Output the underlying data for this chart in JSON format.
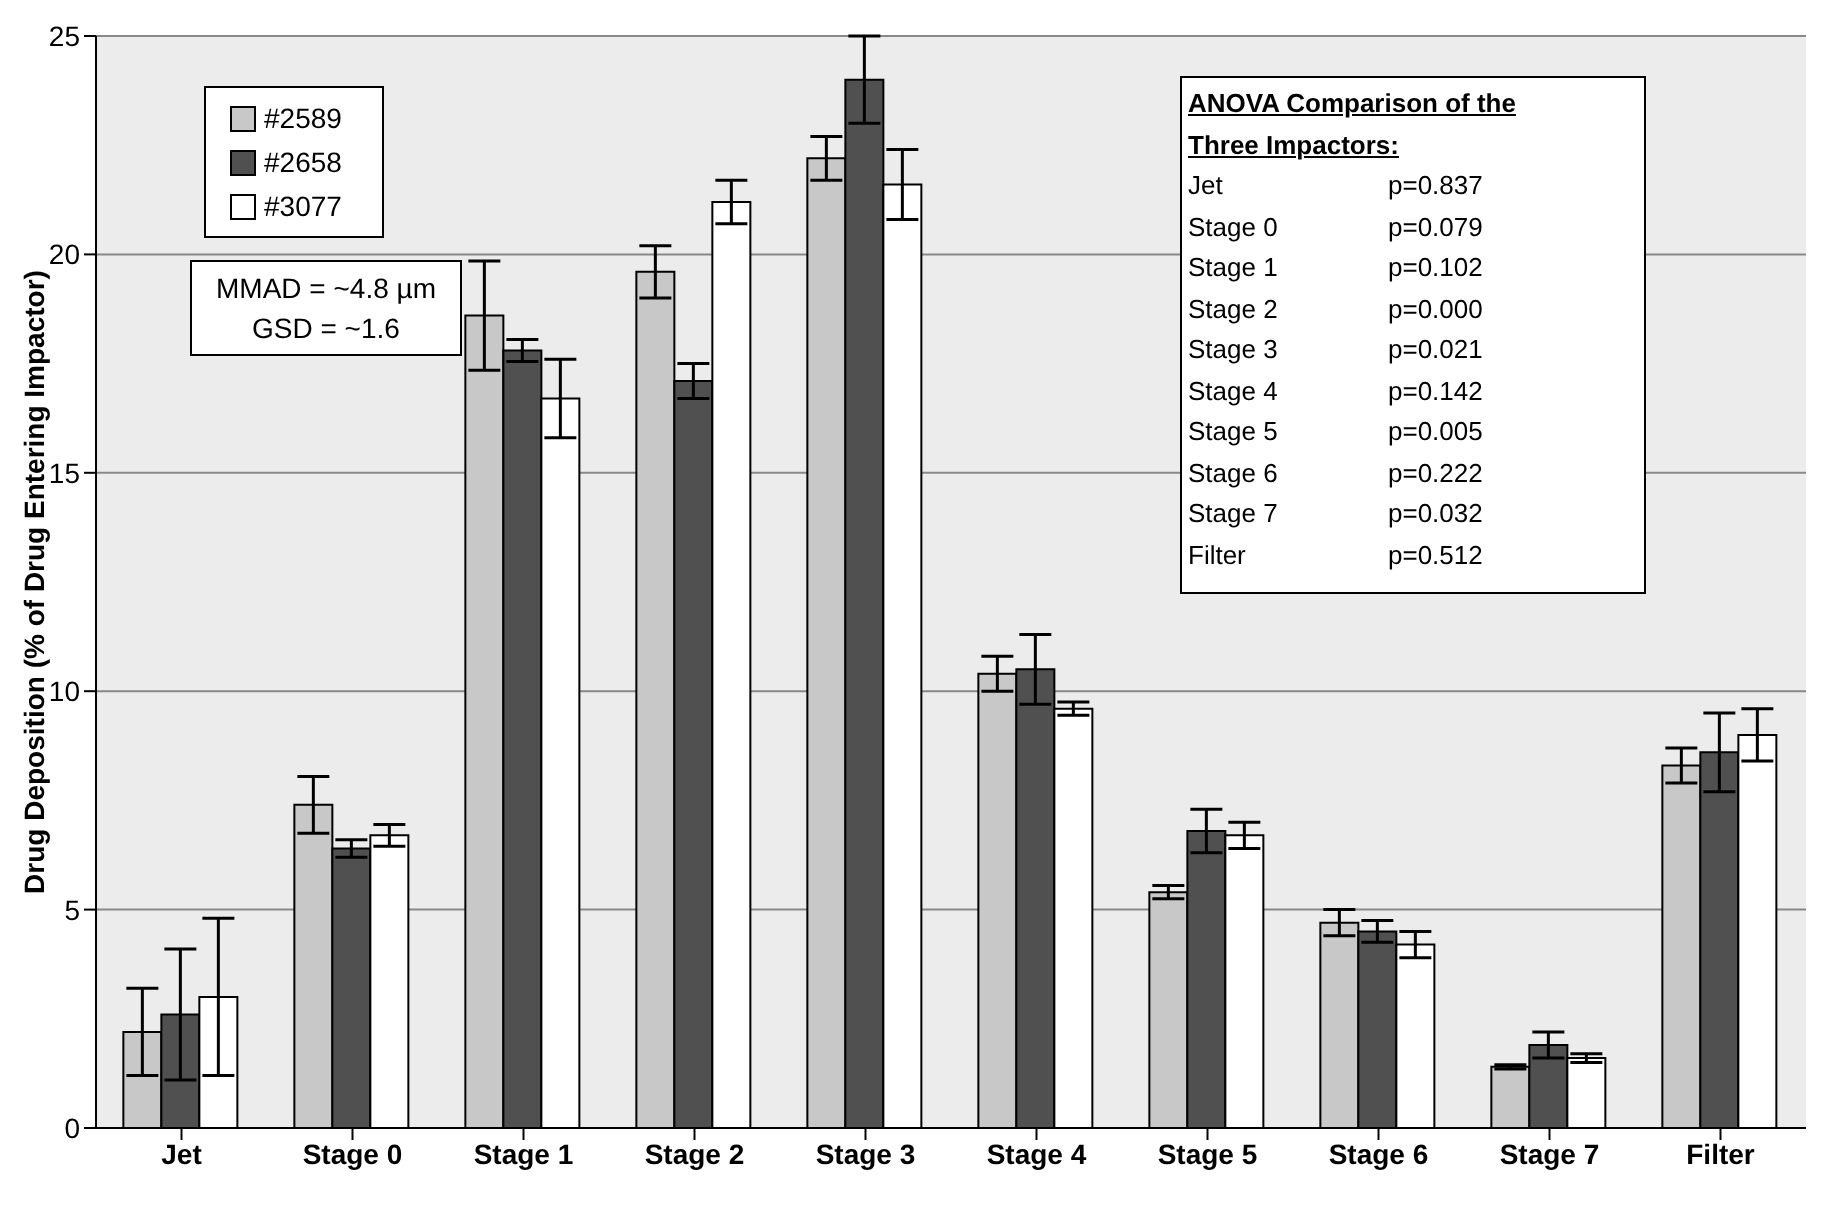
{
  "chart_data": {
    "type": "bar",
    "ylabel": "Drug Deposition (% of Drug Entering Impactor)",
    "categories": [
      "Jet",
      "Stage 0",
      "Stage 1",
      "Stage 2",
      "Stage 3",
      "Stage 4",
      "Stage 5",
      "Stage 6",
      "Stage 7",
      "Filter"
    ],
    "series": [
      {
        "name": "#2589",
        "color": "#c8c8c8",
        "values": [
          2.2,
          7.4,
          18.6,
          19.6,
          22.2,
          10.4,
          5.4,
          4.7,
          1.4,
          8.3
        ],
        "errors": [
          1.0,
          0.65,
          1.25,
          0.6,
          0.5,
          0.4,
          0.15,
          0.3,
          0.05,
          0.4
        ]
      },
      {
        "name": "#2658",
        "color": "#505050",
        "values": [
          2.6,
          6.4,
          17.8,
          17.1,
          24.0,
          10.5,
          6.8,
          4.5,
          1.9,
          8.6
        ],
        "errors": [
          1.5,
          0.2,
          0.25,
          0.4,
          1.0,
          0.8,
          0.5,
          0.25,
          0.3,
          0.9
        ]
      },
      {
        "name": "#3077",
        "color": "#ffffff",
        "values": [
          3.0,
          6.7,
          16.7,
          21.2,
          21.6,
          9.6,
          6.7,
          4.2,
          1.6,
          9.0
        ],
        "errors": [
          1.8,
          0.25,
          0.9,
          0.5,
          0.8,
          0.15,
          0.3,
          0.3,
          0.1,
          0.6
        ]
      }
    ],
    "ylim": [
      0,
      25
    ],
    "yticks": [
      0,
      5,
      10,
      15,
      20,
      25
    ],
    "grid": "y",
    "legend": "top left",
    "annotations": [
      "MMAD = ~4.8 µm",
      "GSD = ~1.6",
      "ANOVA Comparison of the",
      "Three Impactors:",
      "Jet p=0.837",
      "Stage 0 p=0.079",
      "Stage 1 p=0.102",
      "Stage 2 p=0.000",
      "Stage 3 p=0.021",
      "Stage 4 p=0.142",
      "Stage 5 p=0.005",
      "Stage 6 p=0.222",
      "Stage 7 p=0.032",
      "Filter p=0.512"
    ]
  }
}
